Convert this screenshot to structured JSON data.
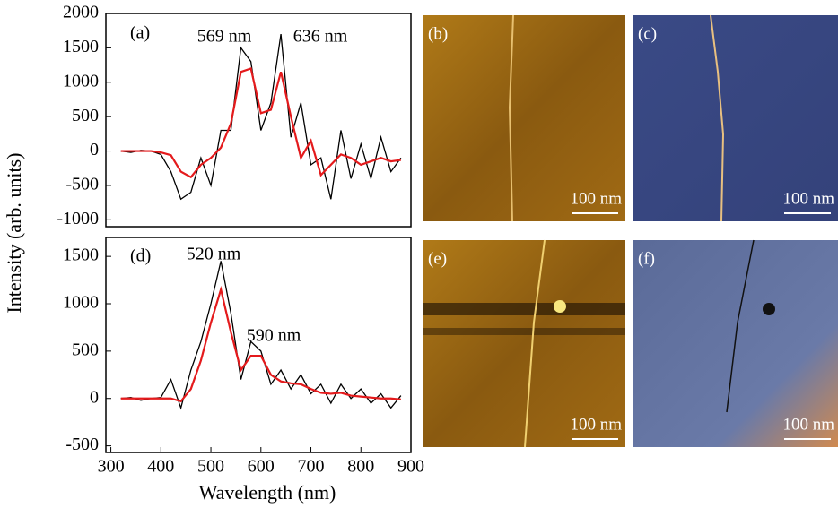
{
  "figure": {
    "ylabel": "Intensity (arb. units)"
  },
  "chart_data": [
    {
      "type": "line",
      "annotations": [
        "(a)",
        "569 nm",
        "636 nm"
      ],
      "x": [
        320,
        340,
        360,
        380,
        400,
        420,
        440,
        460,
        480,
        500,
        520,
        540,
        560,
        580,
        600,
        620,
        640,
        660,
        680,
        700,
        720,
        740,
        760,
        780,
        800,
        820,
        840,
        860,
        880
      ],
      "series": [
        {
          "color": "#000000",
          "values": [
            0,
            -20,
            10,
            0,
            -50,
            -300,
            -700,
            -600,
            -100,
            -500,
            300,
            300,
            1500,
            1300,
            300,
            700,
            1700,
            200,
            700,
            -200,
            -100,
            -700,
            300,
            -400,
            100,
            -400,
            200,
            -300,
            -100
          ]
        },
        {
          "color": "#e41a1c",
          "values": [
            0,
            0,
            0,
            0,
            -20,
            -60,
            -300,
            -380,
            -200,
            -100,
            50,
            400,
            1150,
            1200,
            550,
            600,
            1150,
            500,
            -100,
            150,
            -350,
            -200,
            -50,
            -100,
            -200,
            -150,
            -100,
            -150,
            -130
          ]
        }
      ],
      "xlim": [
        290,
        900
      ],
      "ylim": [
        -1100,
        2000
      ],
      "yticks": [
        -1000,
        -500,
        0,
        500,
        1000,
        1500,
        2000
      ]
    },
    {
      "type": "line",
      "annotations": [
        "(d)",
        "520 nm",
        "590 nm"
      ],
      "xlabel": "Wavelength (nm)",
      "x": [
        320,
        340,
        360,
        380,
        400,
        420,
        440,
        460,
        480,
        500,
        520,
        540,
        560,
        580,
        600,
        620,
        640,
        660,
        680,
        700,
        720,
        740,
        760,
        780,
        800,
        820,
        840,
        860,
        880
      ],
      "series": [
        {
          "color": "#000000",
          "values": [
            0,
            10,
            -20,
            0,
            10,
            200,
            -100,
            300,
            600,
            1000,
            1450,
            900,
            200,
            600,
            500,
            150,
            300,
            100,
            250,
            50,
            150,
            -50,
            150,
            0,
            100,
            -50,
            50,
            -100,
            30
          ]
        },
        {
          "color": "#e41a1c",
          "values": [
            0,
            0,
            0,
            0,
            0,
            0,
            -30,
            100,
            400,
            800,
            1150,
            700,
            300,
            450,
            450,
            250,
            180,
            160,
            150,
            100,
            60,
            50,
            60,
            30,
            20,
            10,
            0,
            0,
            -10
          ]
        }
      ],
      "xlim": [
        290,
        900
      ],
      "ylim": [
        -570,
        1700
      ],
      "xticks": [
        300,
        400,
        500,
        600,
        700,
        800,
        900
      ],
      "yticks": [
        -500,
        0,
        500,
        1000,
        1500
      ]
    }
  ],
  "images": [
    {
      "label": "(b)",
      "scale": "100 nm"
    },
    {
      "label": "(c)",
      "scale": "100 nm"
    },
    {
      "label": "(e)",
      "scale": "100 nm"
    },
    {
      "label": "(f)",
      "scale": "100 nm"
    }
  ]
}
